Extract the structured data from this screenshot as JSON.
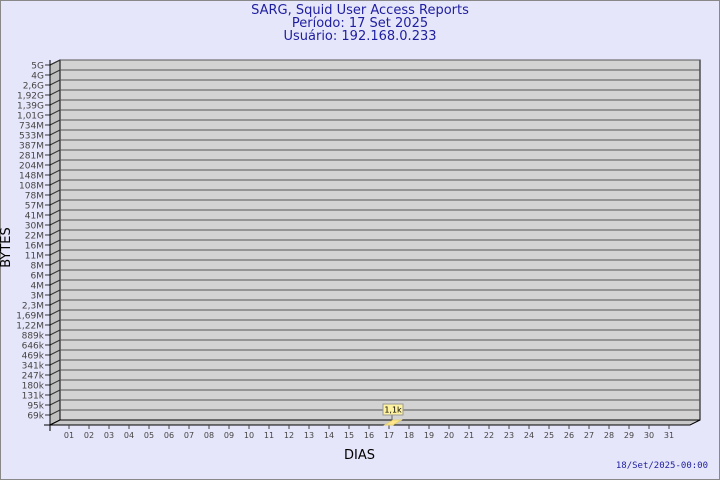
{
  "header": {
    "title": "SARG, Squid User Access Reports",
    "period": "Período: 17 Set 2025",
    "user": "Usuário: 192.168.0.233"
  },
  "footer": {
    "generated": "18/Set/2025-00:00"
  },
  "colors": {
    "background": "#e6e6fa",
    "plot": "#d3d3d3",
    "bar": "#ffe68c",
    "title": "#1e1ea0"
  },
  "chart_data": {
    "type": "bar",
    "xlabel": "DIAS",
    "ylabel": "BYTES",
    "categories": [
      "01",
      "02",
      "03",
      "04",
      "05",
      "06",
      "07",
      "08",
      "09",
      "10",
      "11",
      "12",
      "13",
      "14",
      "15",
      "16",
      "17",
      "18",
      "19",
      "20",
      "21",
      "22",
      "23",
      "24",
      "25",
      "26",
      "27",
      "28",
      "29",
      "30",
      "31"
    ],
    "yticks": [
      "5G",
      "4G",
      "2,6G",
      "1,92G",
      "1,39G",
      "1,01G",
      "734M",
      "533M",
      "387M",
      "281M",
      "204M",
      "148M",
      "108M",
      "78M",
      "57M",
      "41M",
      "30M",
      "22M",
      "16M",
      "11M",
      "8M",
      "6M",
      "4M",
      "3M",
      "2,3M",
      "1,69M",
      "1,22M",
      "889k",
      "646k",
      "469k",
      "341k",
      "247k",
      "180k",
      "131k",
      "95k",
      "69k"
    ],
    "series": [
      {
        "values": [
          null,
          null,
          null,
          null,
          null,
          null,
          null,
          null,
          null,
          null,
          null,
          null,
          null,
          null,
          null,
          null,
          1100,
          null,
          null,
          null,
          null,
          null,
          null,
          null,
          null,
          null,
          null,
          null,
          null,
          null,
          null
        ]
      }
    ],
    "data_labels": {
      "17": "1,1k"
    },
    "grid": true
  }
}
